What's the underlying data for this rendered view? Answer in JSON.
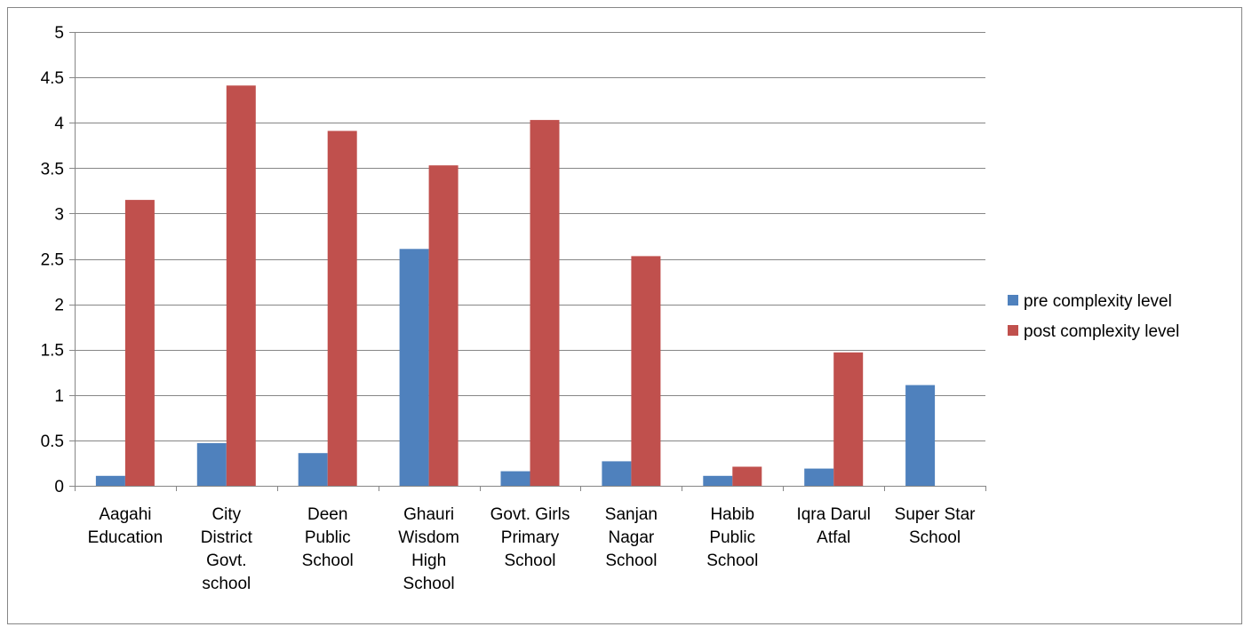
{
  "chart_data": {
    "type": "bar",
    "title": "",
    "xlabel": "",
    "ylabel": "",
    "ylim": [
      0,
      5
    ],
    "y_ticks": [
      "0",
      "0.5",
      "1",
      "1.5",
      "2",
      "2.5",
      "3",
      "3.5",
      "4",
      "4.5",
      "5"
    ],
    "y_tick_values": [
      0,
      0.5,
      1,
      1.5,
      2,
      2.5,
      3,
      3.5,
      4,
      4.5,
      5
    ],
    "grid": true,
    "legend_position": "right",
    "categories": [
      "Aagahi Education",
      "City District Govt. school",
      "Deen Public School",
      "Ghauri Wisdom High School",
      "Govt. Girls Primary School",
      "Sanjan Nagar School",
      "Habib Public School",
      "Iqra Darul Atfal",
      "Super Star School"
    ],
    "category_label_lines": [
      [
        "Aagahi",
        "Education"
      ],
      [
        "City",
        "District",
        "Govt.",
        "school"
      ],
      [
        "Deen",
        "Public",
        "School"
      ],
      [
        "Ghauri",
        "Wisdom",
        "High",
        "School"
      ],
      [
        "Govt. Girls",
        "Primary",
        "School"
      ],
      [
        "Sanjan",
        "Nagar",
        "School"
      ],
      [
        "Habib",
        "Public",
        "School"
      ],
      [
        "Iqra Darul",
        "Atfal"
      ],
      [
        "Super Star",
        "School"
      ]
    ],
    "series": [
      {
        "name": "pre complexity level",
        "color": "#4F81BD",
        "values": [
          0.11,
          0.47,
          0.36,
          2.61,
          0.16,
          0.27,
          0.11,
          0.19,
          1.11
        ]
      },
      {
        "name": "post complexity level",
        "color": "#C0504D",
        "values": [
          3.15,
          4.41,
          3.91,
          3.53,
          4.03,
          2.53,
          0.21,
          1.47,
          0
        ]
      }
    ]
  }
}
